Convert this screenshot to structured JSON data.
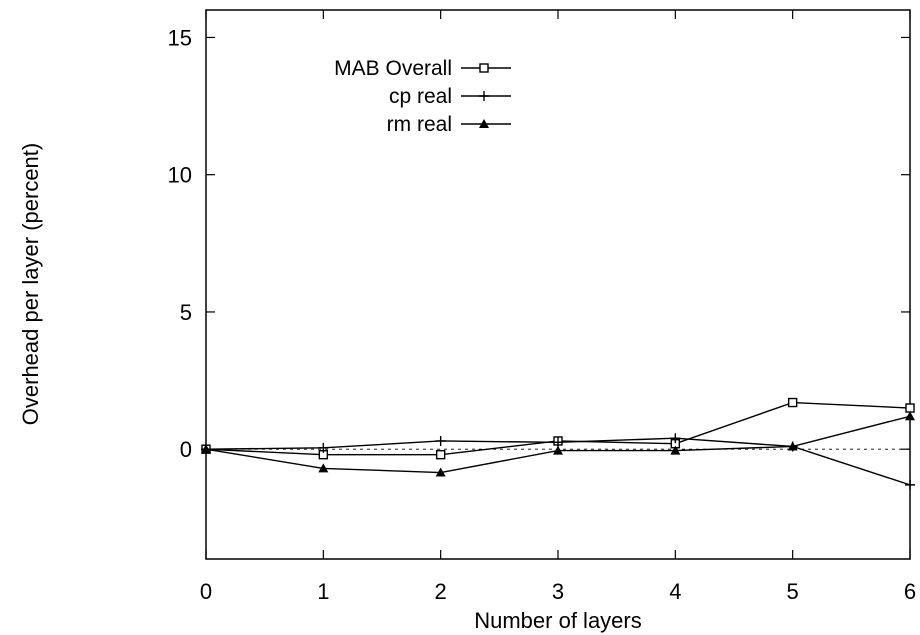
{
  "chart_data": {
    "type": "line",
    "title": "",
    "xlabel": "Number of layers",
    "ylabel": "Overhead per layer (percent)",
    "xlim": [
      0,
      6
    ],
    "ylim": [
      -4,
      16
    ],
    "x_ticks": [
      0,
      1,
      2,
      3,
      4,
      5,
      6
    ],
    "y_ticks": [
      0,
      5,
      10,
      15
    ],
    "grid": false,
    "zero_line": "dashed",
    "legend_position": "top-left",
    "x": [
      0,
      1,
      2,
      3,
      4,
      5,
      6
    ],
    "series": [
      {
        "name": "MAB Overall",
        "marker": "open-square",
        "values": [
          0,
          -0.2,
          -0.2,
          0.3,
          0.2,
          1.7,
          1.5
        ]
      },
      {
        "name": "cp real",
        "marker": "plus",
        "values": [
          0,
          0.05,
          0.3,
          0.25,
          0.4,
          0.1,
          -1.3
        ]
      },
      {
        "name": "rm real",
        "marker": "filled-triangle",
        "values": [
          0,
          -0.7,
          -0.85,
          -0.05,
          -0.05,
          0.1,
          1.2
        ]
      }
    ]
  }
}
